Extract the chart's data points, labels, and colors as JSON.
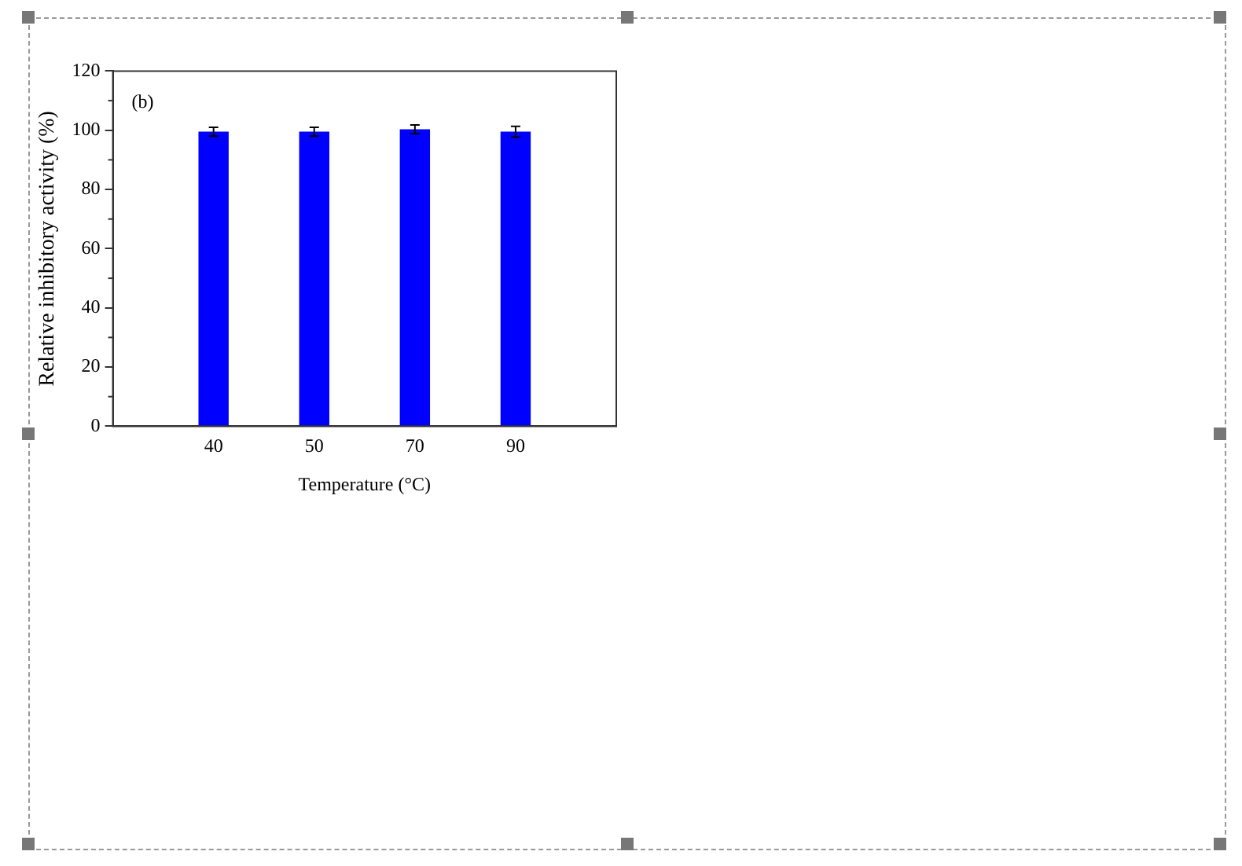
{
  "chart_data": {
    "type": "bar",
    "xlabel": "Temperature (°C)",
    "ylabel": "Relative inhibitory activity (%)",
    "categories": [
      null,
      "40",
      "50",
      "70",
      "90",
      null
    ],
    "values": [
      null,
      99.5,
      99.5,
      100.3,
      99.5,
      null
    ],
    "errors": [
      null,
      1.5,
      1.5,
      1.5,
      1.8,
      null
    ],
    "color": "#0000ff",
    "ylim": [
      0,
      120
    ],
    "yticks": [
      0,
      20,
      40,
      60,
      80,
      100,
      120
    ],
    "grid": false,
    "legend": false,
    "annotations": [
      "(b)"
    ]
  }
}
